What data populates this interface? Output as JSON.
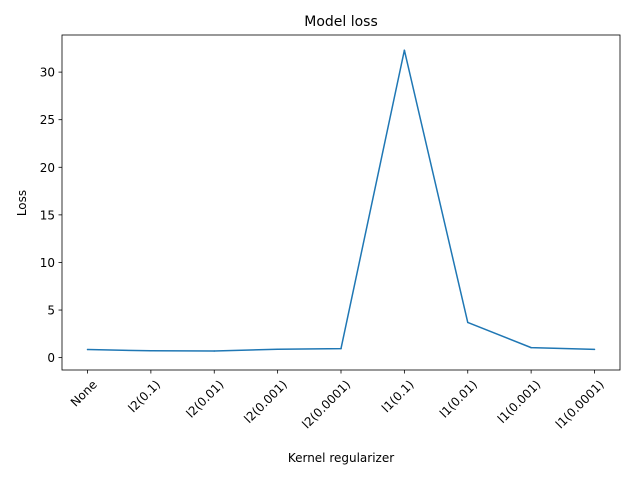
{
  "chart_data": {
    "type": "line",
    "title": "Model loss",
    "xlabel": "Kernel regularizer",
    "ylabel": "Loss",
    "categories": [
      "None",
      "l2(0.1)",
      "l2(0.01)",
      "l2(0.001)",
      "l2(0.0001)",
      "l1(0.1)",
      "l1(0.01)",
      "l1(0.001)",
      "l1(0.0001)"
    ],
    "series": [
      {
        "values": [
          0.85,
          0.72,
          0.7,
          0.88,
          0.95,
          32.3,
          3.7,
          1.05,
          0.87
        ]
      }
    ],
    "yticks": [
      0,
      5,
      10,
      15,
      20,
      25,
      30
    ],
    "ylim": [
      -1.3,
      33.9
    ],
    "grid": false,
    "line_color": "#1f77b4"
  }
}
